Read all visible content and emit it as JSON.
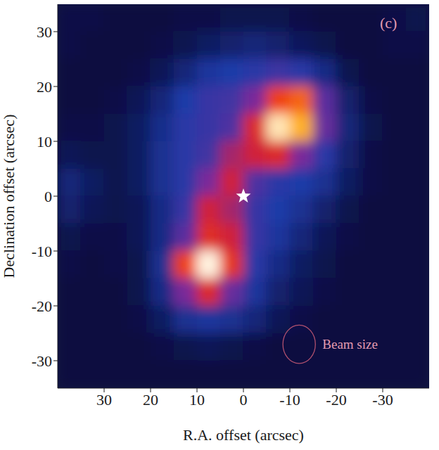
{
  "chart_data": {
    "type": "heatmap",
    "title": "(c)",
    "xlabel": "R.A. offset (arcsec)",
    "ylabel": "Declination offset (arcsec)",
    "xlim": [
      40,
      -40
    ],
    "ylim": [
      -35,
      35
    ],
    "xticks": [
      30,
      20,
      10,
      0,
      -10,
      -20,
      -30
    ],
    "yticks": [
      -30,
      -20,
      -10,
      0,
      10,
      20,
      30
    ],
    "zlim": [
      0,
      1
    ],
    "x": [
      37.5,
      32.5,
      27.5,
      22.5,
      17.5,
      12.5,
      7.5,
      2.5,
      -2.5,
      -7.5,
      -12.5,
      -17.5,
      -22.5,
      -27.5,
      -32.5,
      -37.5
    ],
    "y": [
      32.5,
      27.5,
      22.5,
      17.5,
      12.5,
      7.5,
      2.5,
      -2.5,
      -7.5,
      -12.5,
      -17.5,
      -22.5,
      -27.5,
      -32.5
    ],
    "cells": [
      [
        0.12,
        0.12,
        0.1,
        0.1,
        0.1,
        0.12,
        0.12,
        0.14,
        0.14,
        0.14,
        0.12,
        0.1,
        0.1,
        0.1,
        0.12,
        0.14
      ],
      [
        0.12,
        0.1,
        0.1,
        0.1,
        0.12,
        0.15,
        0.18,
        0.2,
        0.22,
        0.2,
        0.17,
        0.14,
        0.1,
        0.1,
        0.12,
        0.12
      ],
      [
        0.1,
        0.1,
        0.1,
        0.12,
        0.16,
        0.22,
        0.28,
        0.3,
        0.32,
        0.35,
        0.32,
        0.24,
        0.15,
        0.1,
        0.1,
        0.1
      ],
      [
        0.1,
        0.1,
        0.12,
        0.16,
        0.22,
        0.3,
        0.34,
        0.36,
        0.45,
        0.7,
        0.75,
        0.4,
        0.2,
        0.12,
        0.1,
        0.1
      ],
      [
        0.12,
        0.12,
        0.14,
        0.18,
        0.25,
        0.32,
        0.34,
        0.38,
        0.6,
        0.95,
        0.85,
        0.42,
        0.22,
        0.14,
        0.1,
        0.1
      ],
      [
        0.16,
        0.14,
        0.14,
        0.18,
        0.26,
        0.32,
        0.36,
        0.5,
        0.55,
        0.6,
        0.45,
        0.32,
        0.2,
        0.12,
        0.1,
        0.1
      ],
      [
        0.22,
        0.18,
        0.14,
        0.18,
        0.26,
        0.32,
        0.45,
        0.55,
        0.38,
        0.32,
        0.3,
        0.26,
        0.18,
        0.12,
        0.1,
        0.1
      ],
      [
        0.2,
        0.16,
        0.14,
        0.16,
        0.24,
        0.34,
        0.55,
        0.5,
        0.34,
        0.3,
        0.26,
        0.2,
        0.14,
        0.1,
        0.1,
        0.1
      ],
      [
        0.14,
        0.12,
        0.12,
        0.16,
        0.24,
        0.4,
        0.62,
        0.55,
        0.34,
        0.28,
        0.22,
        0.16,
        0.12,
        0.1,
        0.1,
        0.1
      ],
      [
        0.12,
        0.1,
        0.12,
        0.14,
        0.26,
        0.7,
        0.98,
        0.65,
        0.32,
        0.24,
        0.18,
        0.14,
        0.1,
        0.1,
        0.1,
        0.1
      ],
      [
        0.1,
        0.1,
        0.1,
        0.14,
        0.24,
        0.45,
        0.6,
        0.42,
        0.28,
        0.2,
        0.16,
        0.12,
        0.1,
        0.1,
        0.1,
        0.1
      ],
      [
        0.1,
        0.1,
        0.1,
        0.12,
        0.18,
        0.26,
        0.28,
        0.26,
        0.22,
        0.16,
        0.12,
        0.1,
        0.1,
        0.1,
        0.1,
        0.1
      ],
      [
        0.1,
        0.1,
        0.1,
        0.1,
        0.12,
        0.14,
        0.16,
        0.14,
        0.12,
        0.1,
        0.1,
        0.1,
        0.1,
        0.1,
        0.1,
        0.1
      ],
      [
        0.1,
        0.1,
        0.1,
        0.1,
        0.1,
        0.1,
        0.1,
        0.1,
        0.1,
        0.1,
        0.1,
        0.1,
        0.1,
        0.1,
        0.1,
        0.1
      ]
    ],
    "marker_position": {
      "x": 0,
      "y": 0
    },
    "beam": {
      "x": -12,
      "y": -27,
      "radius": 3.5,
      "label": "Beam size"
    }
  }
}
